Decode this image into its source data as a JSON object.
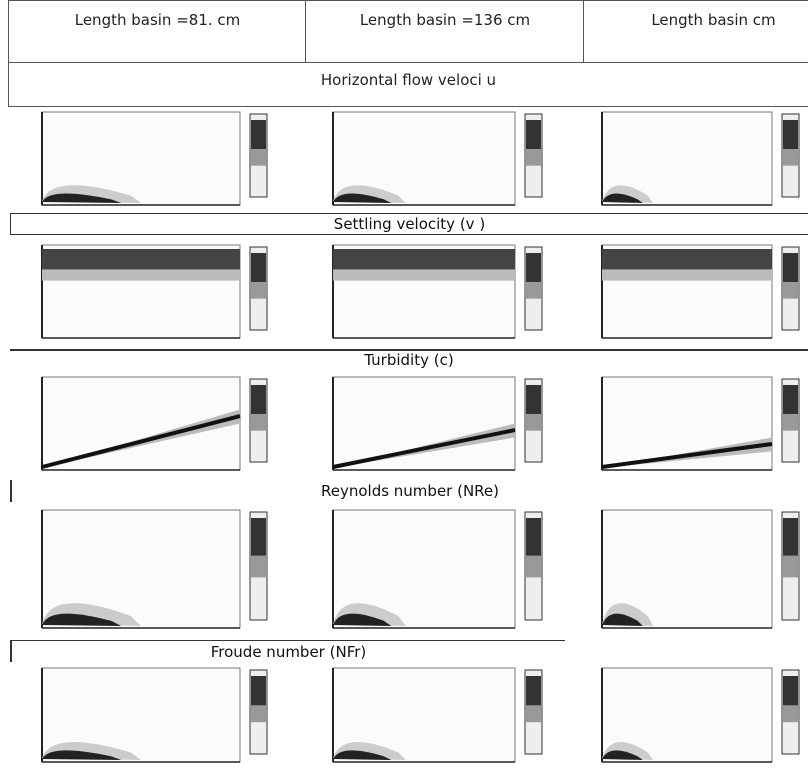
{
  "table": {
    "headers": [
      "Length basin =81. cm",
      "Length basin =136 cm",
      "Length basin cm"
    ],
    "section": "Horizontal flow veloci u"
  },
  "panels": [
    {
      "label": "Settling velocity (v )"
    },
    {
      "label": "Turbidity (c)"
    },
    {
      "label": "Reynolds number (NRe)"
    },
    {
      "label": "Froude number (NFr)"
    }
  ]
}
